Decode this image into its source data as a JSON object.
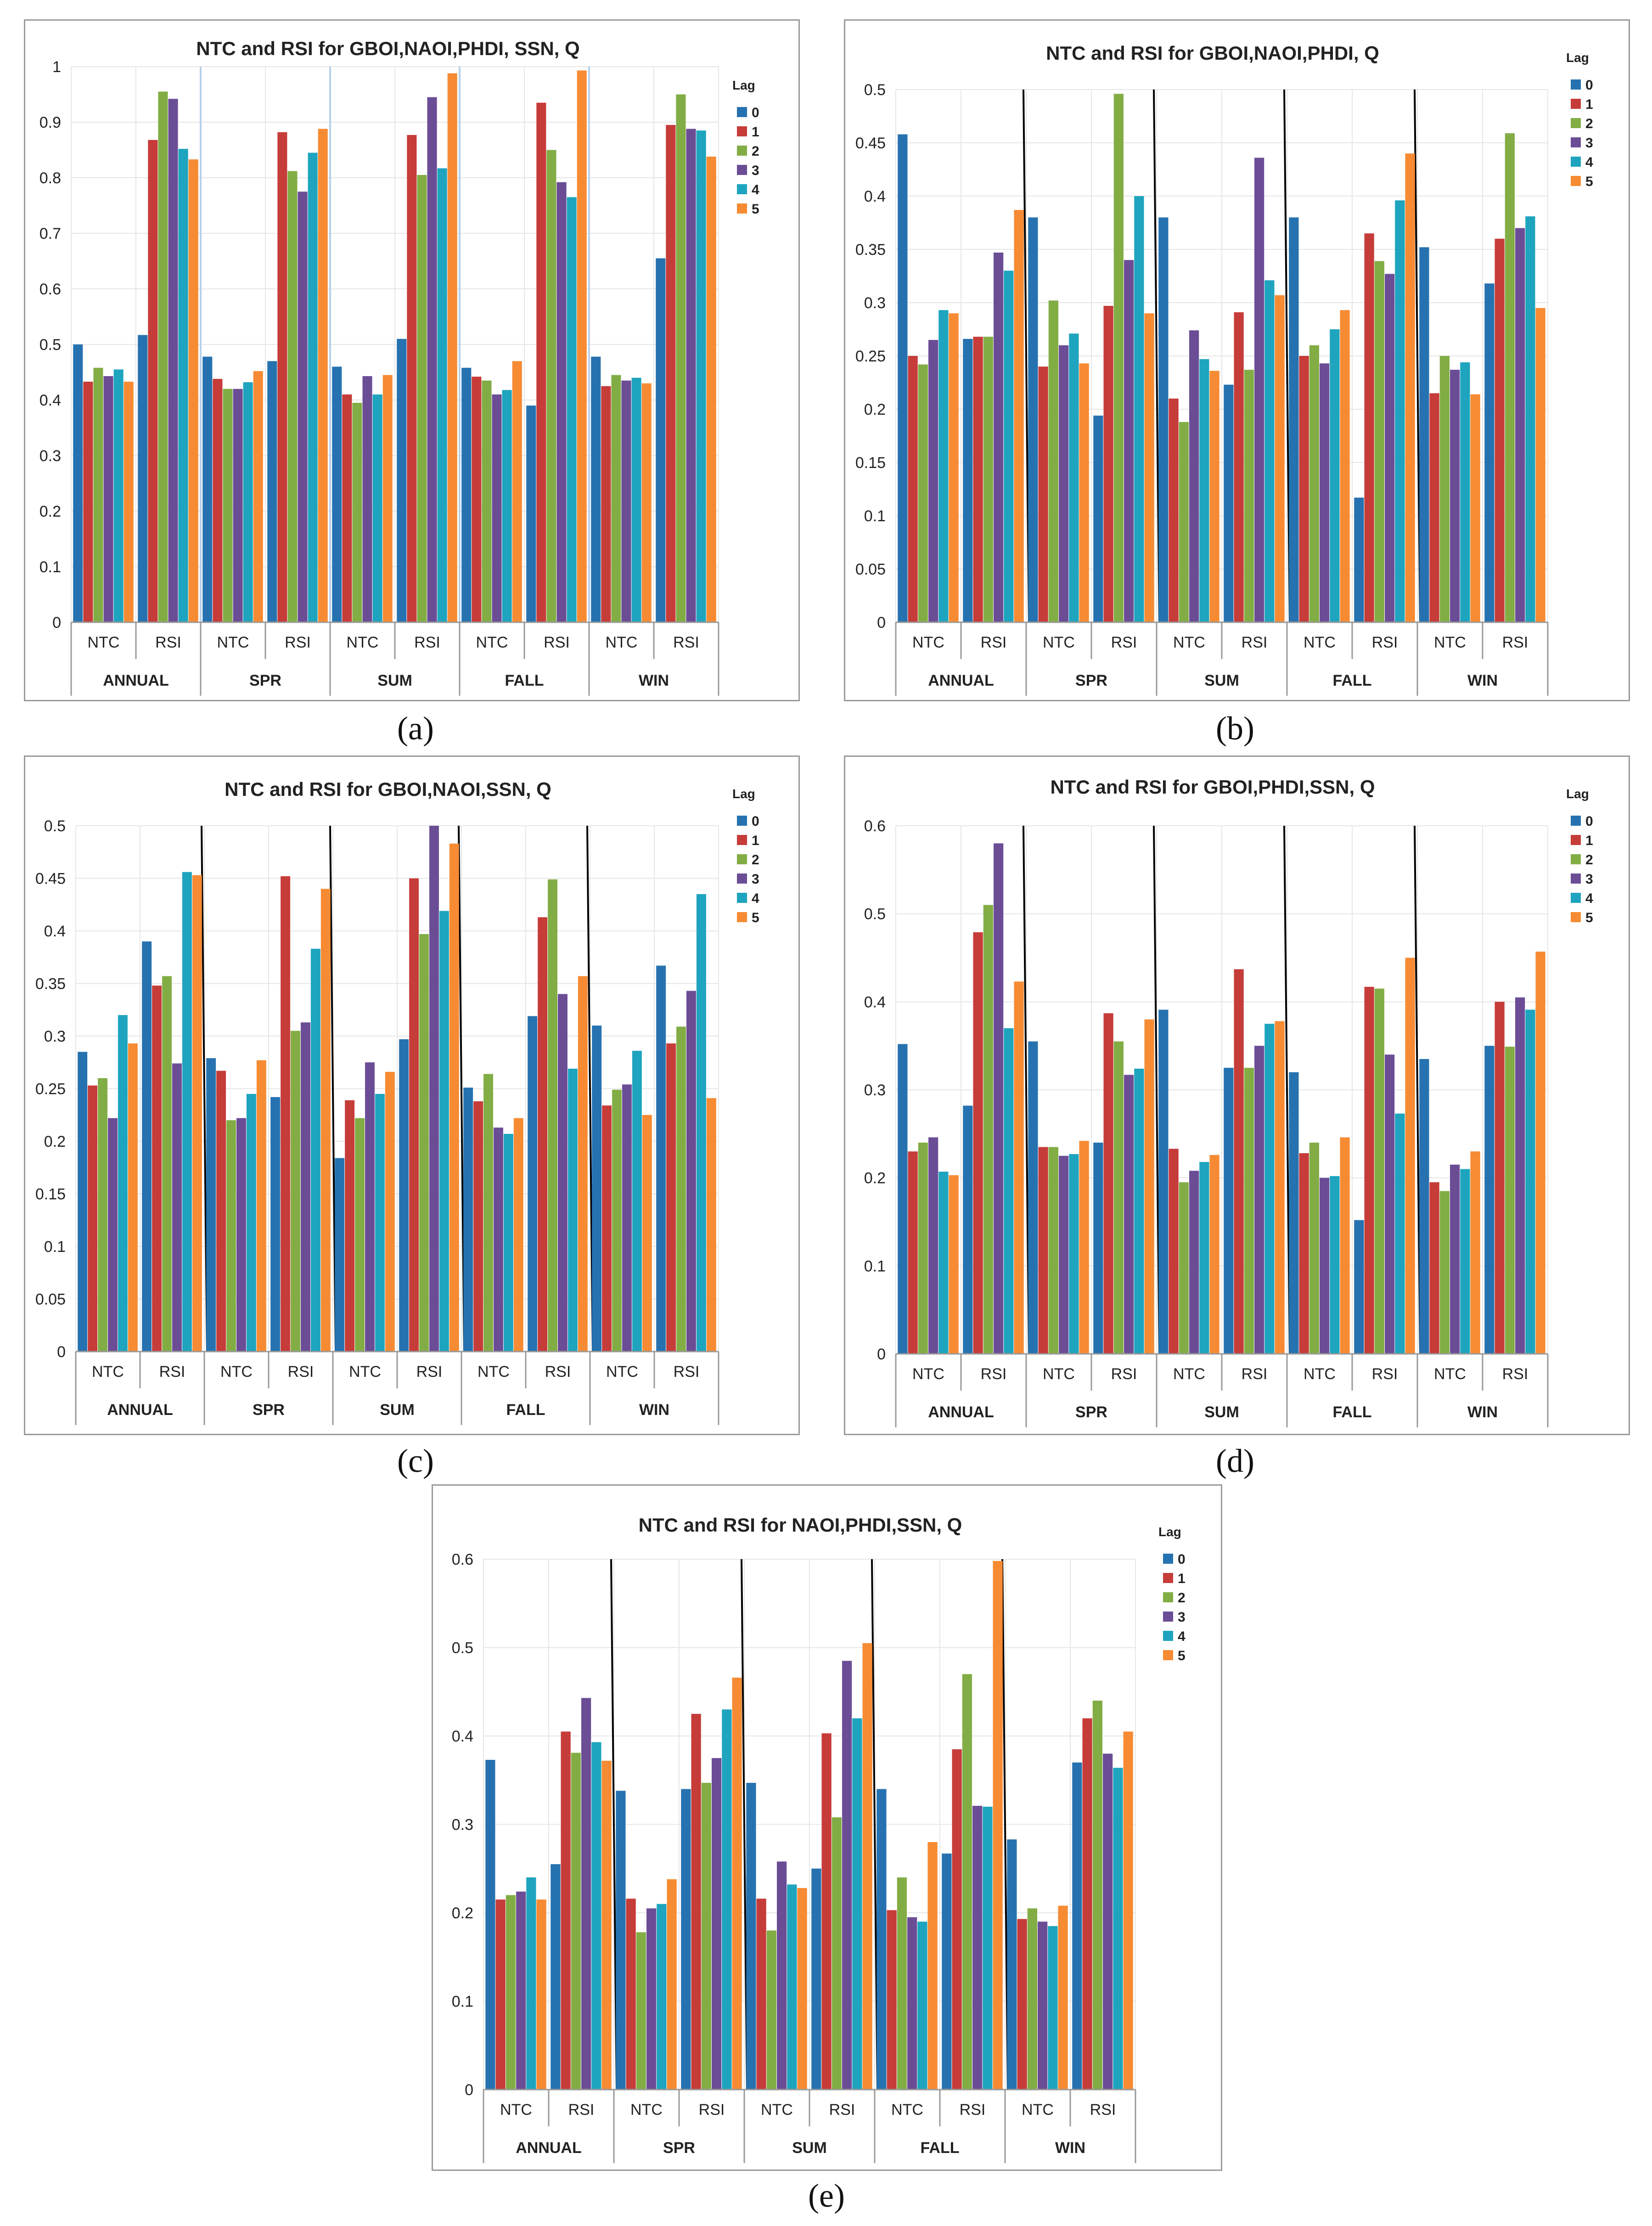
{
  "colors": {
    "lag0": "#2672b0",
    "lag1": "#c63c39",
    "lag2": "#82ad45",
    "lag3": "#6b4d96",
    "lag4": "#1ea4be",
    "lag5": "#f68b33",
    "grid": "#e6e6e6",
    "axis": "#999999",
    "text": "#222222",
    "divider": "#000000"
  },
  "captions": [
    "(a)",
    "(b)",
    "(c)",
    "(d)",
    "(e)"
  ],
  "chart_data": [
    {
      "id": "a",
      "caption": "(a)",
      "type": "bar",
      "title": "NTC and RSI for  GBOI,NAOI,PHDI, SSN, Q",
      "legend_title": "Lag",
      "legend": [
        "0",
        "1",
        "2",
        "3",
        "4",
        "5"
      ],
      "ylim": [
        0,
        1
      ],
      "yticks": [
        "0",
        "0.1",
        "0.2",
        "0.3",
        "0.4",
        "0.5",
        "0.6",
        "0.7",
        "0.8",
        "0.9",
        "1"
      ],
      "groups": [
        "ANNUAL",
        "SPR",
        "SUM",
        "FALL",
        "WIN"
      ],
      "subgroups": [
        "NTC",
        "RSI"
      ],
      "dividers": "light",
      "values": [
        [
          0.5,
          0.433,
          0.458,
          0.443,
          0.455,
          0.433
        ],
        [
          0.517,
          0.868,
          0.955,
          0.942,
          0.852,
          0.833
        ],
        [
          0.478,
          0.438,
          0.42,
          0.42,
          0.432,
          0.452
        ],
        [
          0.47,
          0.882,
          0.812,
          0.775,
          0.845,
          0.888
        ],
        [
          0.46,
          0.41,
          0.395,
          0.443,
          0.41,
          0.445
        ],
        [
          0.51,
          0.877,
          0.805,
          0.945,
          0.817,
          0.988
        ],
        [
          0.458,
          0.442,
          0.435,
          0.41,
          0.418,
          0.47
        ],
        [
          0.39,
          0.935,
          0.85,
          0.792,
          0.765,
          0.993
        ],
        [
          0.478,
          0.425,
          0.445,
          0.435,
          0.44,
          0.43
        ],
        [
          0.655,
          0.895,
          0.95,
          0.888,
          0.885,
          0.838
        ]
      ]
    },
    {
      "id": "b",
      "caption": "(b)",
      "type": "bar",
      "title": "NTC and RSI for  GBOI,NAOI,PHDI, Q",
      "legend_title": "Lag",
      "legend": [
        "0",
        "1",
        "2",
        "3",
        "4",
        "5"
      ],
      "ylim": [
        0,
        0.5
      ],
      "yticks": [
        "0",
        "0.05",
        "0.1",
        "0.15",
        "0.2",
        "0.25",
        "0.3",
        "0.35",
        "0.4",
        "0.45",
        "0.5"
      ],
      "groups": [
        "ANNUAL",
        "SPR",
        "SUM",
        "FALL",
        "WIN"
      ],
      "subgroups": [
        "NTC",
        "RSI"
      ],
      "dividers": "dark",
      "values": [
        [
          0.458,
          0.25,
          0.242,
          0.265,
          0.293,
          0.29
        ],
        [
          0.266,
          0.268,
          0.268,
          0.347,
          0.33,
          0.387
        ],
        [
          0.38,
          0.24,
          0.302,
          0.26,
          0.271,
          0.243
        ],
        [
          0.194,
          0.297,
          0.496,
          0.34,
          0.4,
          0.29
        ],
        [
          0.38,
          0.21,
          0.188,
          0.274,
          0.247,
          0.236
        ],
        [
          0.223,
          0.291,
          0.237,
          0.436,
          0.321,
          0.307
        ],
        [
          0.38,
          0.25,
          0.26,
          0.243,
          0.275,
          0.293
        ],
        [
          0.117,
          0.365,
          0.339,
          0.327,
          0.396,
          0.44
        ],
        [
          0.352,
          0.215,
          0.25,
          0.237,
          0.244,
          0.214
        ],
        [
          0.318,
          0.36,
          0.459,
          0.37,
          0.381,
          0.295
        ]
      ]
    },
    {
      "id": "c",
      "caption": "(c)",
      "type": "bar",
      "title": "NTC and RSI for  GBOI,NAOI,SSN, Q",
      "legend_title": "Lag",
      "legend": [
        "0",
        "1",
        "2",
        "3",
        "4",
        "5"
      ],
      "ylim": [
        0,
        0.5
      ],
      "yticks": [
        "0",
        "0.05",
        "0.1",
        "0.15",
        "0.2",
        "0.25",
        "0.3",
        "0.35",
        "0.4",
        "0.45",
        "0.5"
      ],
      "groups": [
        "ANNUAL",
        "SPR",
        "SUM",
        "FALL",
        "WIN"
      ],
      "subgroups": [
        "NTC",
        "RSI"
      ],
      "dividers": "dark",
      "values": [
        [
          0.285,
          0.253,
          0.26,
          0.222,
          0.32,
          0.293
        ],
        [
          0.39,
          0.348,
          0.357,
          0.274,
          0.456,
          0.453
        ],
        [
          0.279,
          0.267,
          0.22,
          0.222,
          0.245,
          0.277
        ],
        [
          0.242,
          0.452,
          0.305,
          0.313,
          0.383,
          0.44
        ],
        [
          0.184,
          0.239,
          0.222,
          0.275,
          0.245,
          0.266
        ],
        [
          0.297,
          0.45,
          0.397,
          0.5,
          0.419,
          0.483
        ],
        [
          0.251,
          0.238,
          0.264,
          0.213,
          0.207,
          0.222
        ],
        [
          0.319,
          0.413,
          0.449,
          0.34,
          0.269,
          0.357
        ],
        [
          0.31,
          0.234,
          0.249,
          0.254,
          0.286,
          0.225
        ],
        [
          0.367,
          0.293,
          0.309,
          0.343,
          0.435,
          0.241
        ]
      ]
    },
    {
      "id": "d",
      "caption": "(d)",
      "type": "bar",
      "title": "NTC and RSI for  GBOI,PHDI,SSN, Q",
      "legend_title": "Lag",
      "legend": [
        "0",
        "1",
        "2",
        "3",
        "4",
        "5"
      ],
      "ylim": [
        0,
        0.6
      ],
      "yticks": [
        "0",
        "0.1",
        "0.2",
        "0.3",
        "0.4",
        "0.5",
        "0.6"
      ],
      "groups": [
        "ANNUAL",
        "SPR",
        "SUM",
        "FALL",
        "WIN"
      ],
      "subgroups": [
        "NTC",
        "RSI"
      ],
      "dividers": "dark",
      "values": [
        [
          0.352,
          0.23,
          0.24,
          0.246,
          0.207,
          0.203
        ],
        [
          0.282,
          0.479,
          0.51,
          0.58,
          0.37,
          0.423
        ],
        [
          0.355,
          0.235,
          0.235,
          0.225,
          0.227,
          0.242
        ],
        [
          0.24,
          0.387,
          0.355,
          0.317,
          0.324,
          0.38
        ],
        [
          0.391,
          0.233,
          0.195,
          0.208,
          0.218,
          0.226
        ],
        [
          0.325,
          0.437,
          0.325,
          0.35,
          0.375,
          0.378
        ],
        [
          0.32,
          0.228,
          0.24,
          0.2,
          0.202,
          0.246
        ],
        [
          0.152,
          0.417,
          0.415,
          0.34,
          0.273,
          0.45
        ],
        [
          0.335,
          0.195,
          0.185,
          0.215,
          0.21,
          0.23
        ],
        [
          0.35,
          0.4,
          0.349,
          0.405,
          0.391,
          0.457
        ]
      ]
    },
    {
      "id": "e",
      "caption": "(e)",
      "type": "bar",
      "title": "NTC and RSI for  NAOI,PHDI,SSN, Q",
      "legend_title": "Lag",
      "legend": [
        "0",
        "1",
        "2",
        "3",
        "4",
        "5"
      ],
      "ylim": [
        0,
        0.6
      ],
      "yticks": [
        "0",
        "0.1",
        "0.2",
        "0.3",
        "0.4",
        "0.5",
        "0.6"
      ],
      "groups": [
        "ANNUAL",
        "SPR",
        "SUM",
        "FALL",
        "WIN"
      ],
      "subgroups": [
        "NTC",
        "RSI"
      ],
      "dividers": "dark",
      "values": [
        [
          0.373,
          0.215,
          0.22,
          0.224,
          0.24,
          0.215
        ],
        [
          0.255,
          0.405,
          0.381,
          0.443,
          0.393,
          0.372
        ],
        [
          0.338,
          0.216,
          0.178,
          0.205,
          0.21,
          0.238
        ],
        [
          0.34,
          0.425,
          0.347,
          0.375,
          0.43,
          0.466
        ],
        [
          0.347,
          0.216,
          0.18,
          0.258,
          0.232,
          0.228
        ],
        [
          0.25,
          0.403,
          0.308,
          0.485,
          0.42,
          0.505
        ],
        [
          0.34,
          0.203,
          0.24,
          0.195,
          0.19,
          0.28
        ],
        [
          0.267,
          0.385,
          0.47,
          0.321,
          0.32,
          0.598
        ],
        [
          0.283,
          0.193,
          0.205,
          0.19,
          0.185,
          0.208
        ],
        [
          0.37,
          0.42,
          0.44,
          0.38,
          0.364,
          0.405
        ]
      ]
    }
  ]
}
